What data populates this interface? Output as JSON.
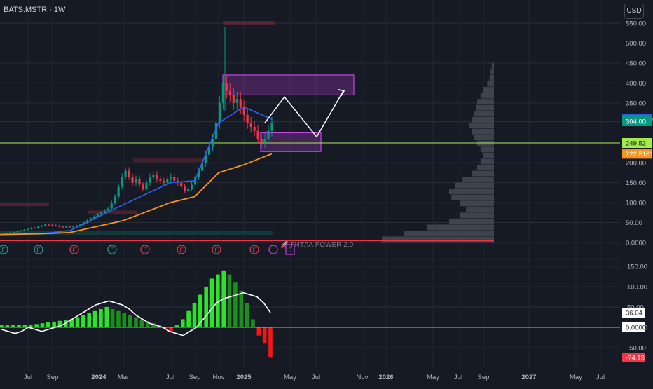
{
  "header": {
    "symbol": "BATS:MSTR · 1W",
    "currency": "USD"
  },
  "indicator_label": "🚀 ГИТЛА POWER 2.0",
  "x_axis_labels": [
    "Jul",
    "Sep",
    "2024",
    "Mar",
    "Jul",
    "Sep",
    "Nov",
    "2025",
    "May",
    "Jul",
    "Nov",
    "2026",
    "May",
    "Jul",
    "Sep",
    "2027",
    "May",
    "Jul"
  ],
  "price_axis": {
    "ticks": [
      "550.00",
      "500.00",
      "450.00",
      "400.00",
      "350.00",
      "300.00",
      "250.00",
      "200.00",
      "150.00",
      "100.00",
      "50.00",
      "0.0000"
    ]
  },
  "price_badges": [
    {
      "label": "309.1159",
      "color": "#2962ff",
      "value": 309.1159
    },
    {
      "label": "304.00",
      "color": "#089981",
      "value": 304.0
    },
    {
      "label": "249.52",
      "color": "#a5e94b",
      "value": 249.52
    },
    {
      "label": "222.5161",
      "color": "#f7931a",
      "value": 222.5161
    }
  ],
  "osc_axis": {
    "ticks": [
      "150.00",
      "100.00",
      "50.00",
      "0.0000",
      "-50.00"
    ]
  },
  "osc_badges": [
    {
      "label": "36.04",
      "color": "#ffffff",
      "value": 36.04
    },
    {
      "label": "0.0000",
      "color": "#ffffff",
      "value": 0
    },
    {
      "label": "-74.13",
      "color": "#f23645",
      "value": -74.13
    }
  ],
  "colors": {
    "up": "#089981",
    "down": "#f23645",
    "ema_fast": "#2962ff",
    "ema_slow": "#f7931a",
    "zone": "#c840e9",
    "support_line": "#a5e94b"
  },
  "chart_data": [
    {
      "type": "line",
      "title": "",
      "ylim": [
        0,
        560
      ],
      "price_candles": {
        "x_labels": [
          "Jul",
          "Sep",
          "2024",
          "Mar",
          "Jul",
          "Sep",
          "Nov",
          "2025"
        ],
        "close": [
          22,
          23,
          25,
          26,
          28,
          30,
          32,
          34,
          37,
          36,
          40,
          42,
          45,
          44,
          43,
          42,
          40,
          38,
          40,
          39,
          40,
          42,
          45,
          50,
          55,
          60,
          65,
          70,
          75,
          80,
          85,
          100,
          115,
          140,
          165,
          180,
          165,
          150,
          160,
          145,
          135,
          150,
          165,
          170,
          160,
          155,
          150,
          160,
          165,
          155,
          150,
          140,
          130,
          135,
          145,
          165,
          180,
          200,
          220,
          240,
          260,
          300,
          350,
          400,
          380,
          370,
          350,
          360,
          340,
          320,
          300,
          290,
          280,
          260,
          250,
          260,
          280,
          300
        ],
        "ema_fast": [
          {
            "x": "2024",
            "y": 30
          },
          {
            "x": "Mar",
            "y": 95
          },
          {
            "x": "Jul",
            "y": 150
          },
          {
            "x": "Sep",
            "y": 155
          },
          {
            "x": "Nov",
            "y": 300
          },
          {
            "x": "2025",
            "y": 340
          },
          {
            "x": "end",
            "y": 309.1159
          }
        ],
        "ema_slow": [
          {
            "x": "2024",
            "y": 25
          },
          {
            "x": "Mar",
            "y": 55
          },
          {
            "x": "Jul",
            "y": 100
          },
          {
            "x": "Sep",
            "y": 115
          },
          {
            "x": "Nov",
            "y": 175
          },
          {
            "x": "2025",
            "y": 195
          },
          {
            "x": "end",
            "y": 222.5161
          }
        ]
      },
      "zones": [
        {
          "name": "",
          "low": 370,
          "high": 420
        },
        {
          "name": "",
          "low": 228,
          "high": 275
        }
      ],
      "horizontal_lines": [
        304.0,
        249.52
      ],
      "projection_path": [
        300,
        365,
        265,
        380
      ],
      "volume_profile": [
        2,
        3,
        4,
        6,
        10,
        12,
        15,
        16,
        18,
        20,
        22,
        20,
        18,
        15,
        12,
        10,
        12,
        15,
        20,
        28,
        35,
        40,
        38,
        30,
        25,
        30,
        40,
        60,
        80,
        100
      ],
      "oscillator": {
        "ylim": [
          -80,
          160
        ],
        "histogram": [
          5,
          5,
          5,
          6,
          6,
          6,
          8,
          10,
          12,
          14,
          16,
          18,
          20,
          25,
          30,
          35,
          40,
          45,
          50,
          45,
          40,
          35,
          30,
          25,
          20,
          15,
          10,
          5,
          -5,
          -10,
          5,
          20,
          40,
          60,
          80,
          100,
          120,
          130,
          140,
          130,
          110,
          90,
          60,
          20,
          -20,
          -40,
          -74.13
        ],
        "signal": [
          -5,
          -10,
          -15,
          -10,
          0,
          -5,
          -10,
          -5,
          0,
          5,
          15,
          25,
          35,
          45,
          55,
          60,
          65,
          60,
          55,
          45,
          30,
          20,
          10,
          5,
          0,
          -10,
          -15,
          -20,
          -10,
          0,
          20,
          40,
          60,
          70,
          75,
          80,
          85,
          80,
          75,
          60,
          36.04
        ]
      }
    }
  ]
}
